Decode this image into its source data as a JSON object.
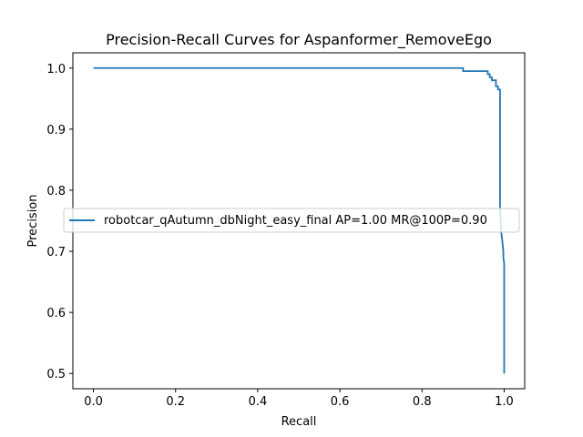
{
  "chart_data": {
    "type": "line",
    "title": "Precision-Recall Curves for Aspanformer_RemoveEgo",
    "xlabel": "Recall",
    "ylabel": "Precision",
    "xlim": [
      -0.05,
      1.05
    ],
    "ylim": [
      0.475,
      1.025
    ],
    "x_ticks": [
      0.0,
      0.2,
      0.4,
      0.6,
      0.8,
      1.0
    ],
    "x_tick_labels": [
      "0.0",
      "0.2",
      "0.4",
      "0.6",
      "0.8",
      "1.0"
    ],
    "y_ticks": [
      0.5,
      0.6,
      0.7,
      0.8,
      0.9,
      1.0
    ],
    "y_tick_labels": [
      "0.5",
      "0.6",
      "0.7",
      "0.8",
      "0.9",
      "1.0"
    ],
    "grid": false,
    "legend_position": "center-right",
    "series": [
      {
        "name": "robotcar_qAutumn_dbNight_easy_final AP=1.00 MR@100P=0.90",
        "color": "#1f77b4",
        "x": [
          0.0,
          0.9,
          0.9,
          0.96,
          0.96,
          0.965,
          0.965,
          0.97,
          0.97,
          0.98,
          0.98,
          0.985,
          0.985,
          0.99,
          0.99,
          0.99,
          0.993,
          0.995,
          0.998,
          0.998,
          1.0,
          1.0
        ],
        "y": [
          1.0,
          1.0,
          0.995,
          0.995,
          0.99,
          0.99,
          0.985,
          0.985,
          0.98,
          0.98,
          0.97,
          0.97,
          0.965,
          0.965,
          0.78,
          0.77,
          0.73,
          0.72,
          0.7,
          0.69,
          0.68,
          0.5
        ]
      }
    ]
  }
}
